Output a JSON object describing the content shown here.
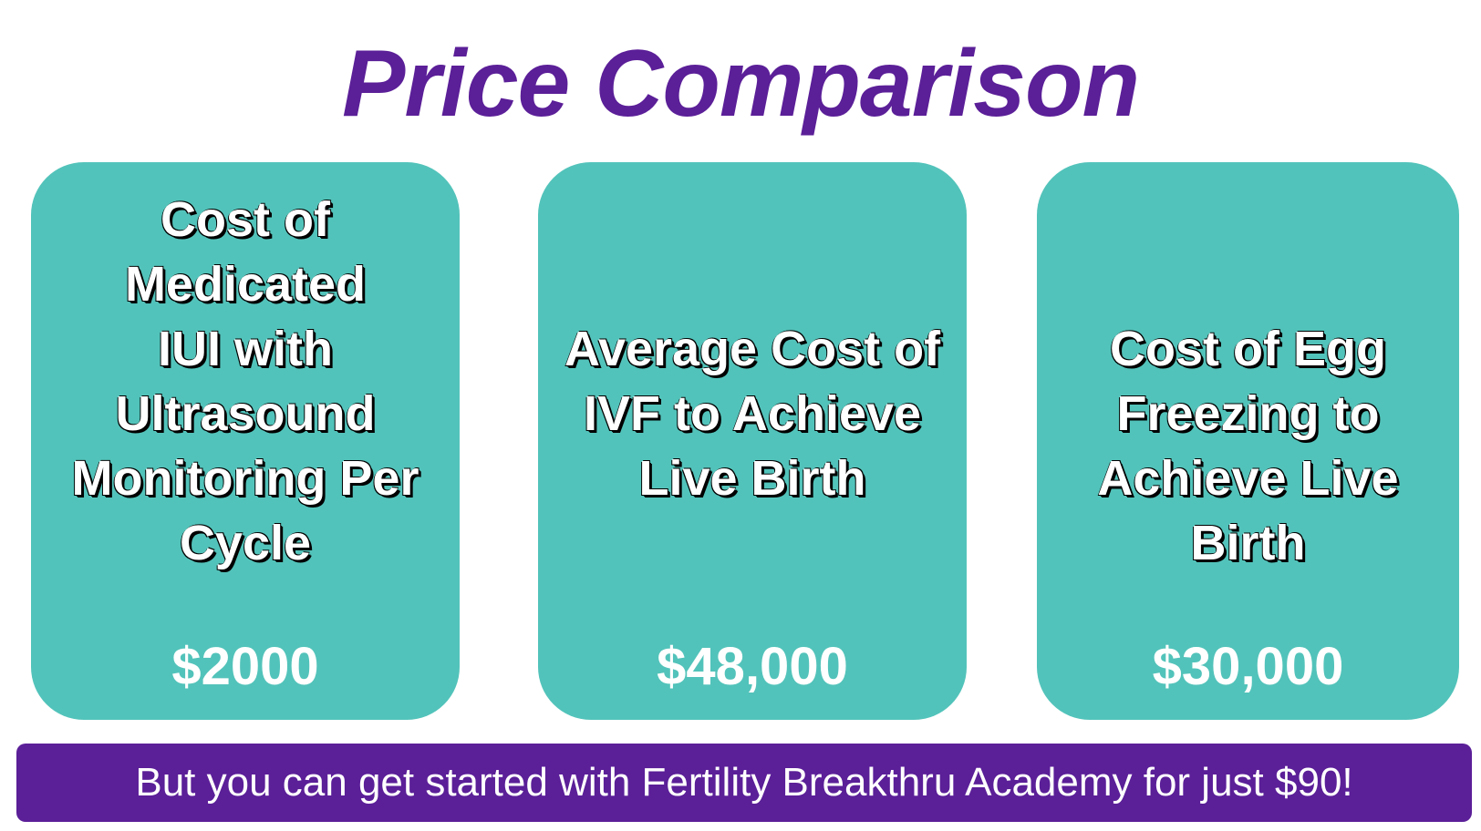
{
  "title": "Price Comparison",
  "cards": [
    {
      "label_lines": [
        "Cost of",
        "Medicated",
        "IUI with",
        "Ultrasound",
        "Monitoring Per",
        "Cycle"
      ],
      "price": "$2000"
    },
    {
      "label_lines": [
        "Average Cost of",
        "IVF to Achieve",
        "Live Birth"
      ],
      "price": "$48,000"
    },
    {
      "label_lines": [
        "Cost of Egg",
        "Freezing to",
        "Achieve Live",
        "Birth"
      ],
      "price": "$30,000"
    }
  ],
  "banner": "But you can get started with Fertility Breakthru Academy for just $90!",
  "colors": {
    "title": "#5b1f98",
    "card_bg": "#52c3ba",
    "banner_bg": "#5b1f98",
    "text_light": "#ffffff"
  }
}
